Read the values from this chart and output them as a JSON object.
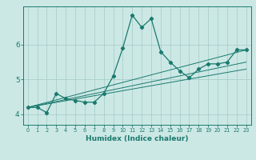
{
  "xlabel": "Humidex (Indice chaleur)",
  "bg_color": "#cce8e5",
  "line_color": "#1a7a6e",
  "grid_color": "#aacfcc",
  "xlim": [
    -0.5,
    23.5
  ],
  "ylim": [
    3.7,
    7.1
  ],
  "yticks": [
    4,
    5,
    6
  ],
  "xticks": [
    0,
    1,
    2,
    3,
    4,
    5,
    6,
    7,
    8,
    9,
    10,
    11,
    12,
    13,
    14,
    15,
    16,
    17,
    18,
    19,
    20,
    21,
    22,
    23
  ],
  "series": [
    {
      "x": [
        0,
        1,
        2,
        3,
        4,
        5,
        6,
        7,
        8,
        9,
        10,
        11,
        12,
        13,
        14,
        15,
        16,
        17,
        18,
        19,
        20,
        21,
        22,
        23
      ],
      "y": [
        4.2,
        4.2,
        4.05,
        4.6,
        4.45,
        4.4,
        4.35,
        4.35,
        4.6,
        5.1,
        5.9,
        6.85,
        6.5,
        6.75,
        5.8,
        5.5,
        5.25,
        5.05,
        5.3,
        5.45,
        5.45,
        5.5,
        5.85,
        5.85
      ]
    },
    {
      "x": [
        0,
        23
      ],
      "y": [
        4.2,
        5.85
      ]
    },
    {
      "x": [
        0,
        23
      ],
      "y": [
        4.2,
        5.5
      ]
    },
    {
      "x": [
        0,
        23
      ],
      "y": [
        4.2,
        5.3
      ]
    }
  ]
}
